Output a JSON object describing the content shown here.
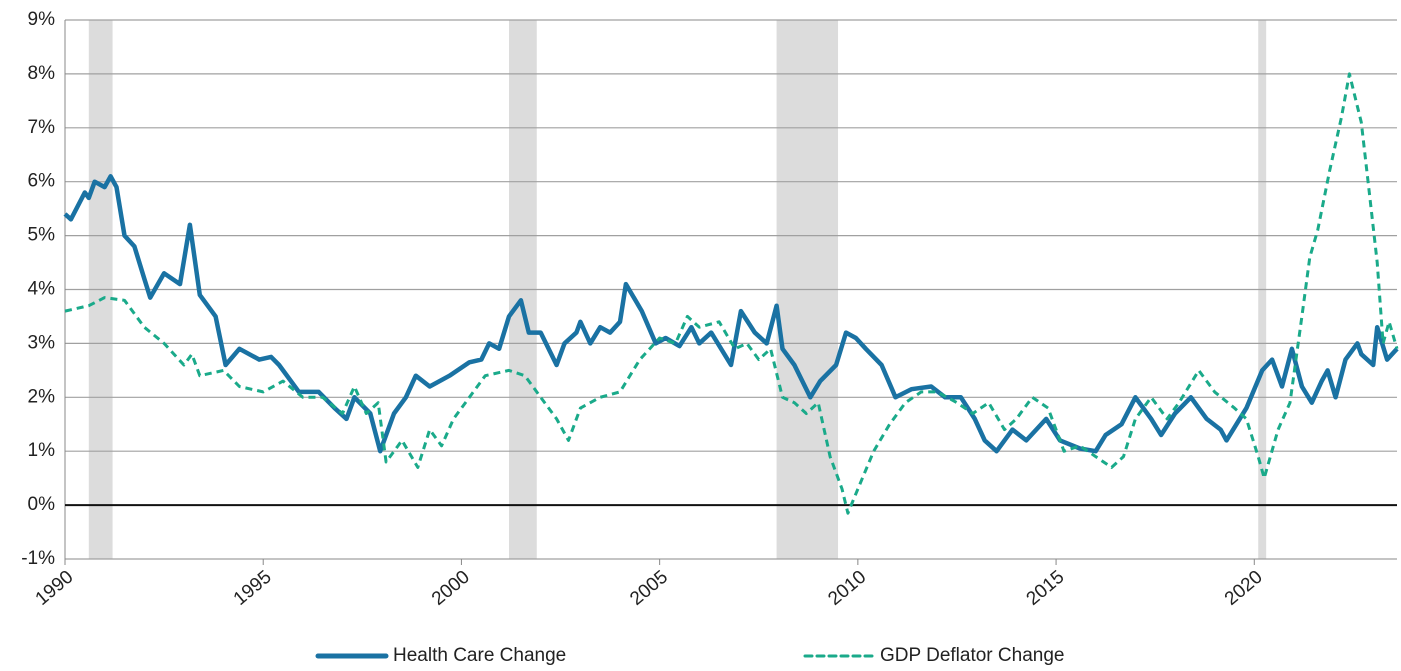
{
  "chart_data": {
    "type": "line",
    "xlim": [
      1990,
      2023.6
    ],
    "xticks": [
      1990,
      1995,
      2000,
      2005,
      2010,
      2015,
      2020
    ],
    "ylim": [
      -1,
      9
    ],
    "yticks": [
      {
        "value": -1,
        "label": "-1%"
      },
      {
        "value": 0,
        "label": "0%"
      },
      {
        "value": 1,
        "label": "1%"
      },
      {
        "value": 2,
        "label": "2%"
      },
      {
        "value": 3,
        "label": "3%"
      },
      {
        "value": 4,
        "label": "4%"
      },
      {
        "value": 5,
        "label": "5%"
      },
      {
        "value": 6,
        "label": "6%"
      },
      {
        "value": 7,
        "label": "7%"
      },
      {
        "value": 8,
        "label": "8%"
      },
      {
        "value": 9,
        "label": "9%"
      }
    ],
    "grid": true,
    "legend": "bottom",
    "shaded_regions": [
      [
        1990.6,
        1991.2
      ],
      [
        2001.2,
        2001.9
      ],
      [
        2007.95,
        2009.5
      ],
      [
        2020.1,
        2020.3
      ]
    ],
    "series": [
      {
        "name": "Health Care Change",
        "color": "#1a72a3",
        "dashed": false,
        "x": [
          1990.0,
          1990.15,
          1990.5,
          1990.6,
          1990.75,
          1991.0,
          1991.15,
          1991.3,
          1991.5,
          1991.75,
          1992.0,
          1992.15,
          1992.5,
          1992.9,
          1993.15,
          1993.4,
          1993.8,
          1994.05,
          1994.4,
          1994.9,
          1995.2,
          1995.4,
          1995.9,
          1996.4,
          1996.8,
          1997.1,
          1997.3,
          1997.7,
          1997.95,
          1998.3,
          1998.6,
          1998.85,
          1999.2,
          1999.7,
          2000.2,
          2000.5,
          2000.7,
          2000.95,
          2001.2,
          2001.5,
          2001.7,
          2002.0,
          2002.4,
          2002.6,
          2002.9,
          2003.0,
          2003.25,
          2003.5,
          2003.75,
          2004.0,
          2004.15,
          2004.55,
          2004.9,
          2005.15,
          2005.5,
          2005.8,
          2006.0,
          2006.3,
          2006.8,
          2007.05,
          2007.4,
          2007.7,
          2007.95,
          2008.1,
          2008.4,
          2008.8,
          2009.05,
          2009.45,
          2009.7,
          2009.95,
          2010.2,
          2010.6,
          2010.95,
          2011.35,
          2011.85,
          2012.2,
          2012.6,
          2012.95,
          2013.2,
          2013.5,
          2013.9,
          2014.25,
          2014.75,
          2015.1,
          2015.6,
          2016.0,
          2016.25,
          2016.65,
          2017.0,
          2017.4,
          2017.65,
          2018.0,
          2018.4,
          2018.8,
          2019.15,
          2019.3,
          2019.55,
          2019.8,
          2020.2,
          2020.45,
          2020.7,
          2020.95,
          2021.2,
          2021.45,
          2021.7,
          2021.85,
          2022.05,
          2022.3,
          2022.6,
          2022.7,
          2023.0,
          2023.1,
          2023.35,
          2023.6
        ],
        "values": [
          5.4,
          5.3,
          5.8,
          5.7,
          6.0,
          5.9,
          6.1,
          5.9,
          5.0,
          4.8,
          4.2,
          3.85,
          4.3,
          4.1,
          5.2,
          3.9,
          3.5,
          2.6,
          2.9,
          2.7,
          2.75,
          2.6,
          2.1,
          2.1,
          1.8,
          1.6,
          2.0,
          1.7,
          1.0,
          1.7,
          2.0,
          2.4,
          2.2,
          2.4,
          2.65,
          2.7,
          3.0,
          2.9,
          3.5,
          3.8,
          3.2,
          3.2,
          2.6,
          3.0,
          3.2,
          3.4,
          3.0,
          3.3,
          3.2,
          3.4,
          4.1,
          3.6,
          3.0,
          3.1,
          2.95,
          3.3,
          3.0,
          3.2,
          2.6,
          3.6,
          3.2,
          3.0,
          3.7,
          2.9,
          2.6,
          2.0,
          2.3,
          2.6,
          3.2,
          3.1,
          2.9,
          2.6,
          2.0,
          2.15,
          2.2,
          2.0,
          2.0,
          1.6,
          1.2,
          1.0,
          1.4,
          1.2,
          1.6,
          1.2,
          1.05,
          1.0,
          1.3,
          1.5,
          2.0,
          1.6,
          1.3,
          1.7,
          2.0,
          1.6,
          1.4,
          1.2,
          1.5,
          1.8,
          2.5,
          2.7,
          2.2,
          2.9,
          2.2,
          1.9,
          2.3,
          2.5,
          2.0,
          2.7,
          3.0,
          2.8,
          2.6,
          3.3,
          2.7,
          2.9
        ]
      },
      {
        "name": "GDP Deflator Change",
        "color": "#1aaa8a",
        "dashed": true,
        "x": [
          1990.0,
          1990.6,
          1991.0,
          1991.5,
          1992.0,
          1992.5,
          1993.0,
          1993.2,
          1993.4,
          1994.0,
          1994.4,
          1995.0,
          1995.5,
          1996.0,
          1996.5,
          1997.0,
          1997.3,
          1997.6,
          1997.9,
          1998.1,
          1998.5,
          1998.9,
          1999.2,
          1999.5,
          1999.8,
          2000.2,
          2000.6,
          2001.2,
          2001.6,
          2002.0,
          2002.4,
          2002.7,
          2003.0,
          2003.5,
          2004.0,
          2004.5,
          2005.0,
          2005.4,
          2005.7,
          2006.0,
          2006.5,
          2006.9,
          2007.2,
          2007.5,
          2007.8,
          2008.1,
          2008.4,
          2008.7,
          2009.0,
          2009.3,
          2009.6,
          2009.75,
          2010.0,
          2010.4,
          2010.8,
          2011.2,
          2011.6,
          2012.0,
          2012.5,
          2012.9,
          2013.3,
          2013.7,
          2014.0,
          2014.4,
          2014.8,
          2015.2,
          2015.6,
          2016.0,
          2016.4,
          2016.7,
          2017.0,
          2017.4,
          2017.8,
          2018.1,
          2018.6,
          2019.0,
          2019.5,
          2019.8,
          2020.1,
          2020.25,
          2020.6,
          2020.9,
          2021.2,
          2021.4,
          2021.6,
          2021.9,
          2022.2,
          2022.4,
          2022.7,
          2022.9,
          2023.1,
          2023.25,
          2023.4,
          2023.6
        ],
        "values": [
          3.6,
          3.7,
          3.85,
          3.8,
          3.3,
          3.0,
          2.6,
          2.8,
          2.4,
          2.5,
          2.2,
          2.1,
          2.3,
          2.0,
          2.0,
          1.7,
          2.2,
          1.7,
          1.9,
          0.8,
          1.2,
          0.7,
          1.4,
          1.1,
          1.6,
          2.0,
          2.4,
          2.5,
          2.4,
          2.0,
          1.6,
          1.2,
          1.8,
          2.0,
          2.1,
          2.7,
          3.1,
          3.0,
          3.5,
          3.3,
          3.4,
          2.9,
          3.0,
          2.7,
          2.9,
          2.0,
          1.9,
          1.7,
          1.9,
          0.9,
          0.3,
          -0.15,
          0.3,
          1.0,
          1.5,
          1.9,
          2.1,
          2.1,
          1.9,
          1.7,
          1.9,
          1.4,
          1.6,
          2.0,
          1.8,
          1.0,
          1.1,
          0.9,
          0.7,
          0.9,
          1.6,
          2.0,
          1.6,
          1.9,
          2.5,
          2.1,
          1.8,
          1.6,
          0.9,
          0.5,
          1.4,
          1.9,
          3.5,
          4.6,
          5.1,
          6.2,
          7.2,
          8.0,
          7.1,
          5.8,
          4.5,
          3.0,
          3.4,
          2.9
        ]
      }
    ]
  }
}
